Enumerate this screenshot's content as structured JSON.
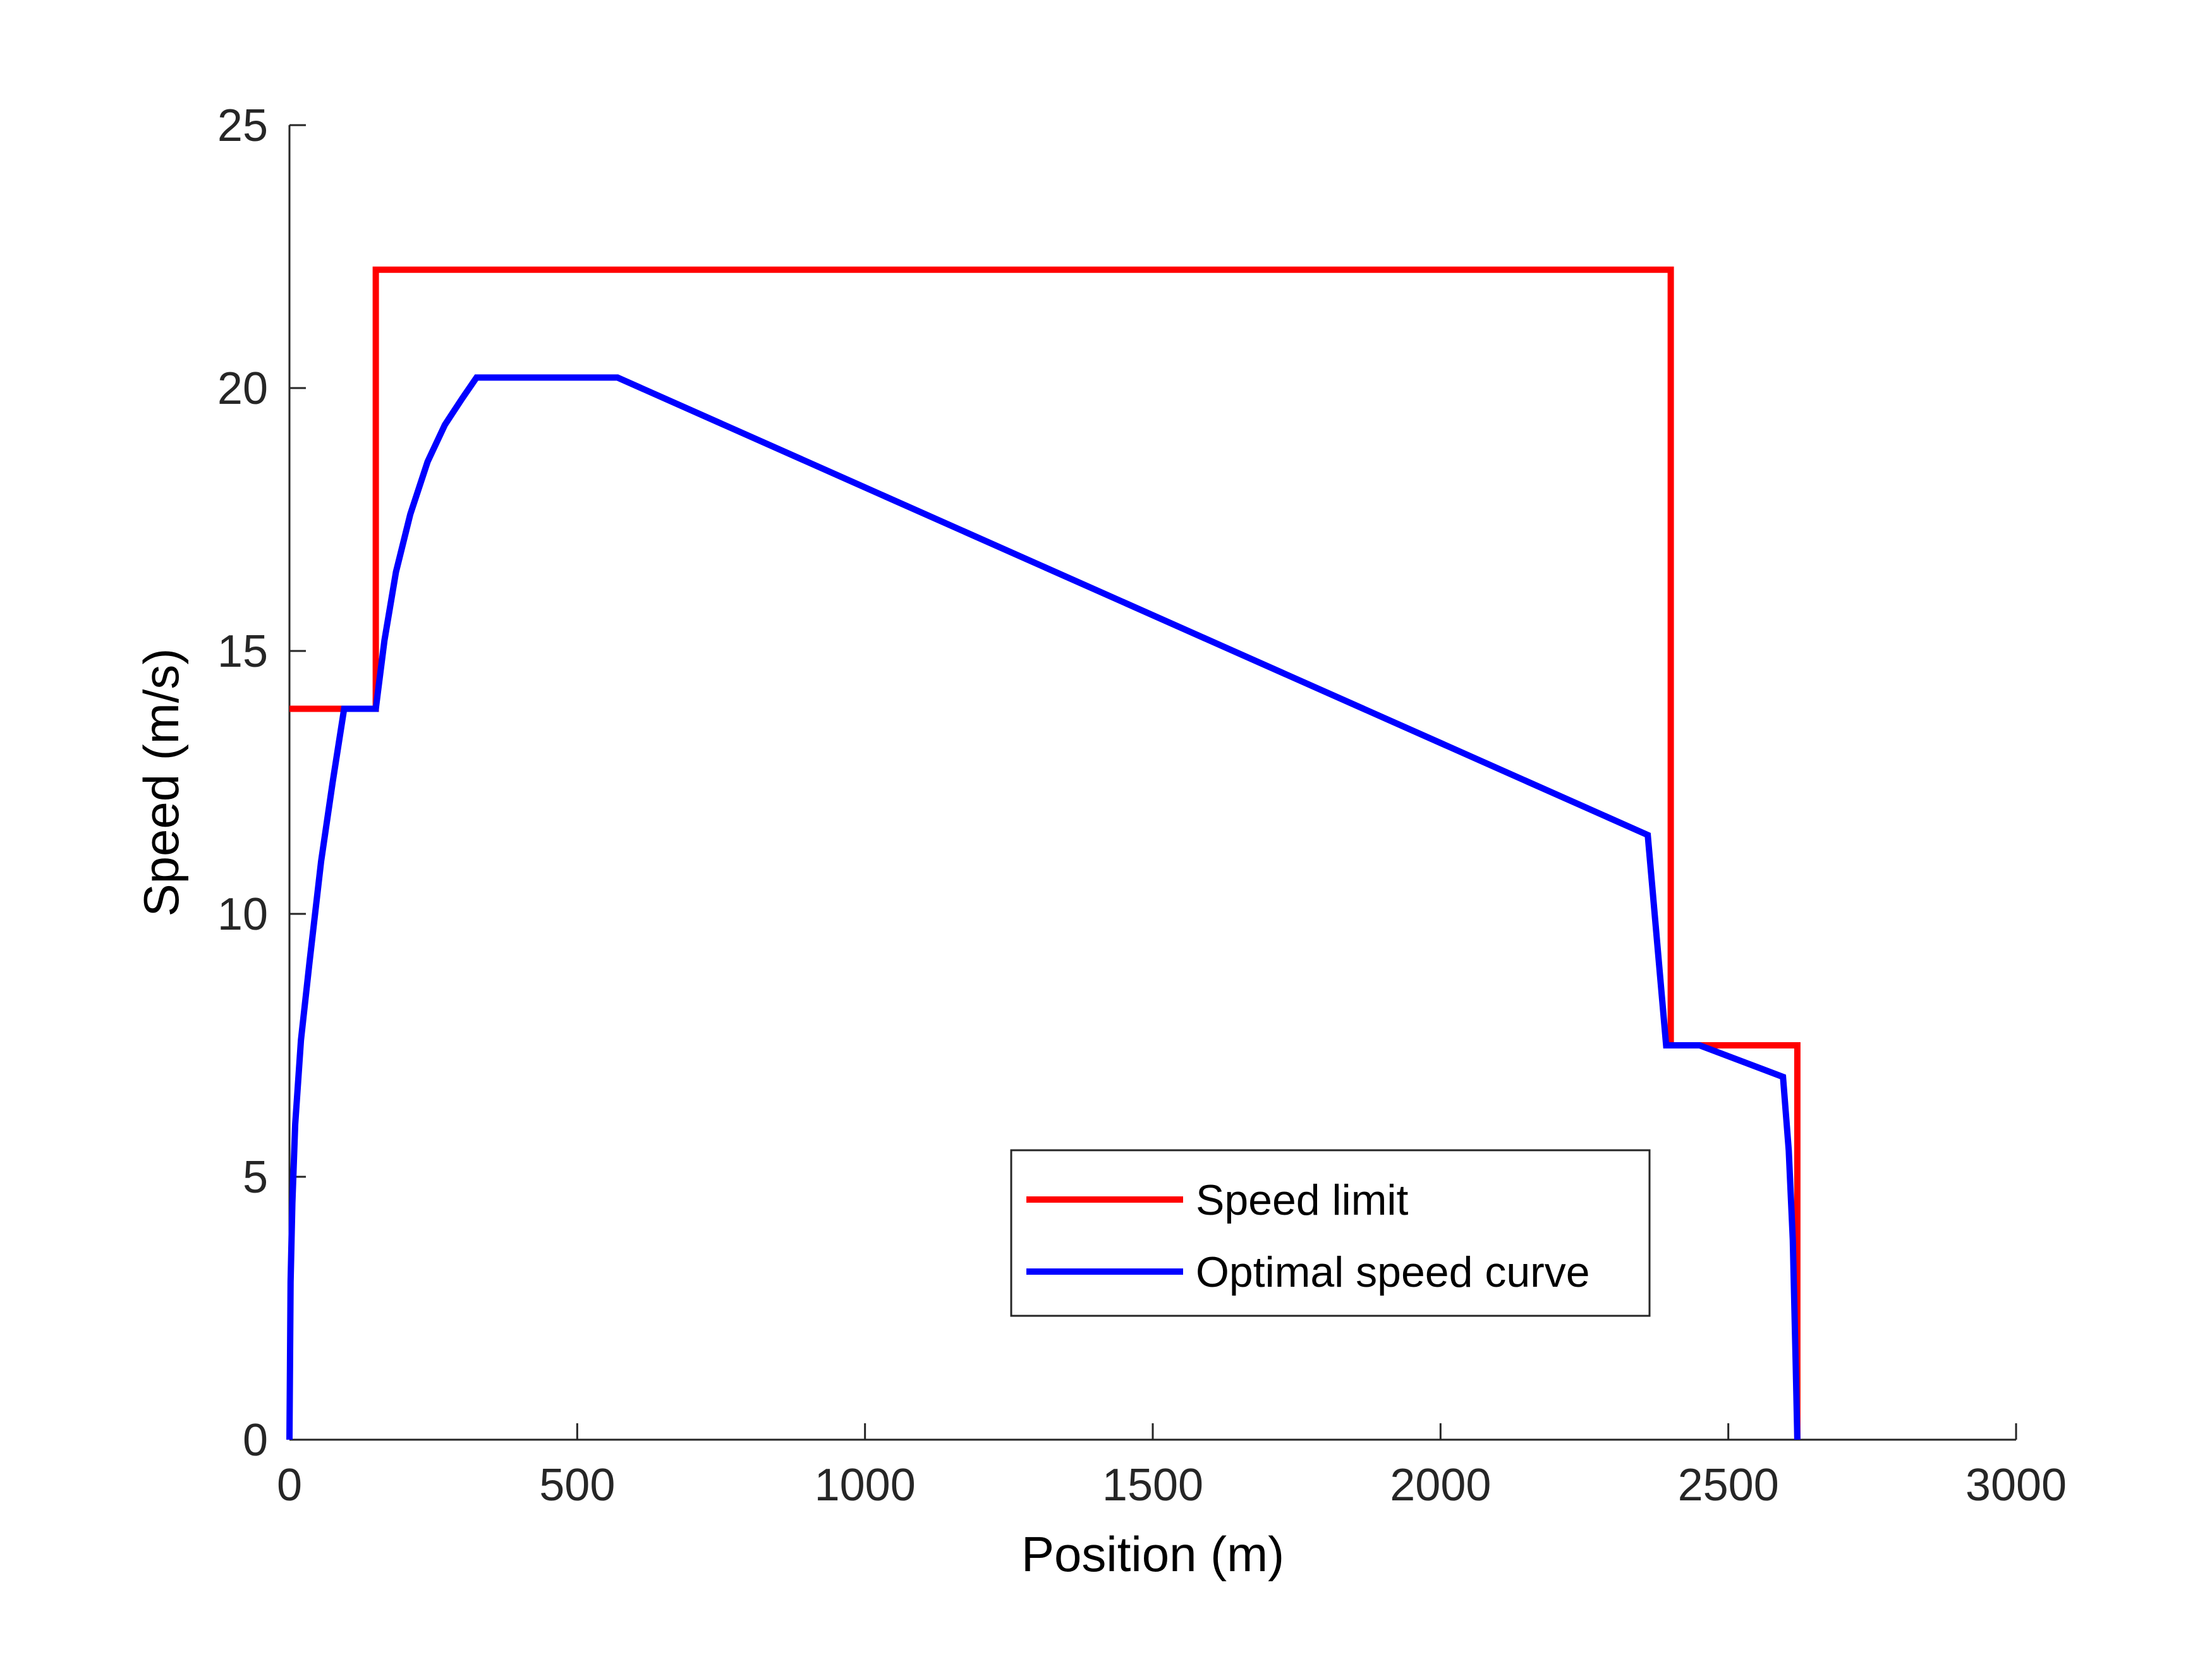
{
  "chart_data": {
    "type": "line",
    "title": "",
    "xlabel": "Position (m)",
    "ylabel": "Speed (m/s)",
    "xlim": [
      0,
      3000
    ],
    "ylim": [
      0,
      25
    ],
    "xticks": [
      0,
      500,
      1000,
      1500,
      2000,
      2500,
      3000
    ],
    "yticks": [
      0,
      5,
      10,
      15,
      20,
      25
    ],
    "grid": false,
    "legend_position": "bottom-center",
    "series": [
      {
        "name": "Speed limit",
        "color": "#ff0000",
        "x": [
          0,
          150,
          150,
          2400,
          2400,
          2620,
          2620
        ],
        "y": [
          13.9,
          13.9,
          22.25,
          22.25,
          7.5,
          7.5,
          0
        ]
      },
      {
        "name": "Optimal speed curve",
        "color": "#0000ff",
        "x": [
          0,
          2,
          5,
          10,
          20,
          35,
          55,
          75,
          95,
          150,
          165,
          185,
          210,
          240,
          270,
          300,
          325,
          570,
          2360,
          2392,
          2420,
          2450,
          2595,
          2605,
          2612,
          2617,
          2620
        ],
        "y": [
          0,
          3.0,
          4.5,
          6.0,
          7.6,
          9.1,
          11.0,
          12.5,
          13.9,
          13.9,
          15.2,
          16.5,
          17.6,
          18.6,
          19.3,
          19.8,
          20.2,
          20.2,
          11.5,
          7.5,
          7.5,
          7.5,
          6.9,
          5.5,
          3.8,
          1.5,
          0
        ]
      }
    ]
  }
}
